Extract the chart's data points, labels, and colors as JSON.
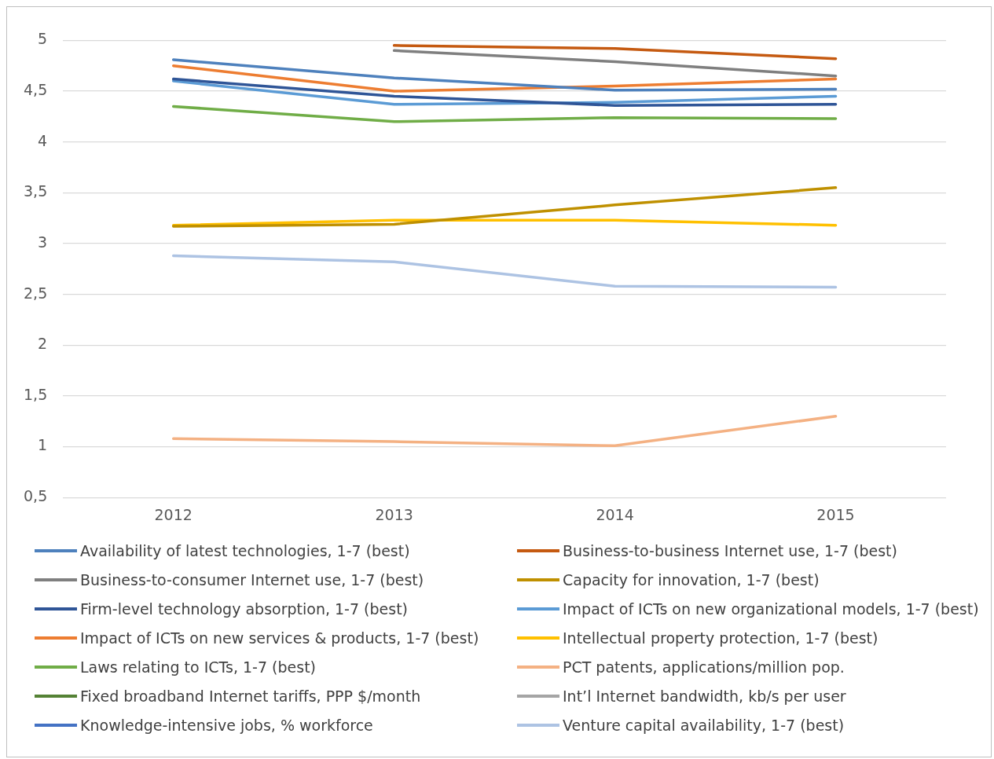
{
  "chart_data": {
    "type": "line",
    "categories": [
      "2012",
      "2013",
      "2014",
      "2015"
    ],
    "ylim": [
      0.5,
      5
    ],
    "yticks": [
      {
        "value": 0.5,
        "label": "0,5"
      },
      1,
      {
        "value": 1.5,
        "label": "1,5"
      },
      2,
      {
        "value": 2.5,
        "label": "2,5"
      },
      3,
      {
        "value": 3.5,
        "label": "3,5"
      },
      4,
      {
        "value": 4.5,
        "label": "4,5"
      },
      5
    ],
    "grid": "y",
    "legend": "bottom",
    "series": [
      {
        "name": "Availability of latest technologies, 1-7 (best)",
        "color": "#4e81bd",
        "values": [
          4.81,
          4.63,
          4.51,
          4.52
        ]
      },
      {
        "name": "Business-to-business Internet use, 1-7 (best)",
        "color": "#c55a11",
        "values": [
          null,
          4.95,
          4.92,
          4.82
        ]
      },
      {
        "name": "Business-to-consumer Internet use, 1-7 (best)",
        "color": "#7f7f7f",
        "values": [
          null,
          4.9,
          4.79,
          4.65
        ]
      },
      {
        "name": "Capacity for innovation, 1-7 (best)",
        "color": "#bf9000",
        "values": [
          3.17,
          3.19,
          3.38,
          3.55
        ]
      },
      {
        "name": "Firm-level technology absorption, 1-7 (best)",
        "color": "#2f5597",
        "values": [
          4.62,
          4.45,
          4.36,
          4.37
        ]
      },
      {
        "name": "Impact of ICTs on new organizational models, 1-7 (best)",
        "color": "#5b9bd5",
        "values": [
          4.6,
          4.37,
          4.39,
          4.45
        ]
      },
      {
        "name": "Impact of ICTs on new services & products, 1-7 (best)",
        "color": "#ed7d31",
        "values": [
          4.75,
          4.5,
          4.55,
          4.62
        ]
      },
      {
        "name": "Intellectual property protection, 1-7 (best)",
        "color": "#ffc000",
        "values": [
          3.18,
          3.23,
          3.23,
          3.18
        ]
      },
      {
        "name": "Laws relating to ICTs, 1-7 (best)",
        "color": "#70ad47",
        "values": [
          4.35,
          4.2,
          4.24,
          4.23
        ]
      },
      {
        "name": "PCT patents, applications/million pop.",
        "color": "#f4b183",
        "values": [
          1.08,
          1.05,
          1.01,
          1.3
        ]
      },
      {
        "name": "Fixed broadband Internet tariffs, PPP $/month",
        "color": "#548235",
        "values": [
          null,
          null,
          null,
          null
        ]
      },
      {
        "name": "Int’l Internet bandwidth, kb/s per user",
        "color": "#a5a5a5",
        "values": [
          null,
          null,
          null,
          null
        ]
      },
      {
        "name": "Knowledge-intensive jobs, % workforce",
        "color": "#4472c4",
        "values": [
          null,
          null,
          null,
          null
        ]
      },
      {
        "name": "Venture capital availability, 1-7 (best)",
        "color": "#adc3e3",
        "values": [
          2.88,
          2.82,
          2.58,
          2.57
        ]
      }
    ]
  }
}
